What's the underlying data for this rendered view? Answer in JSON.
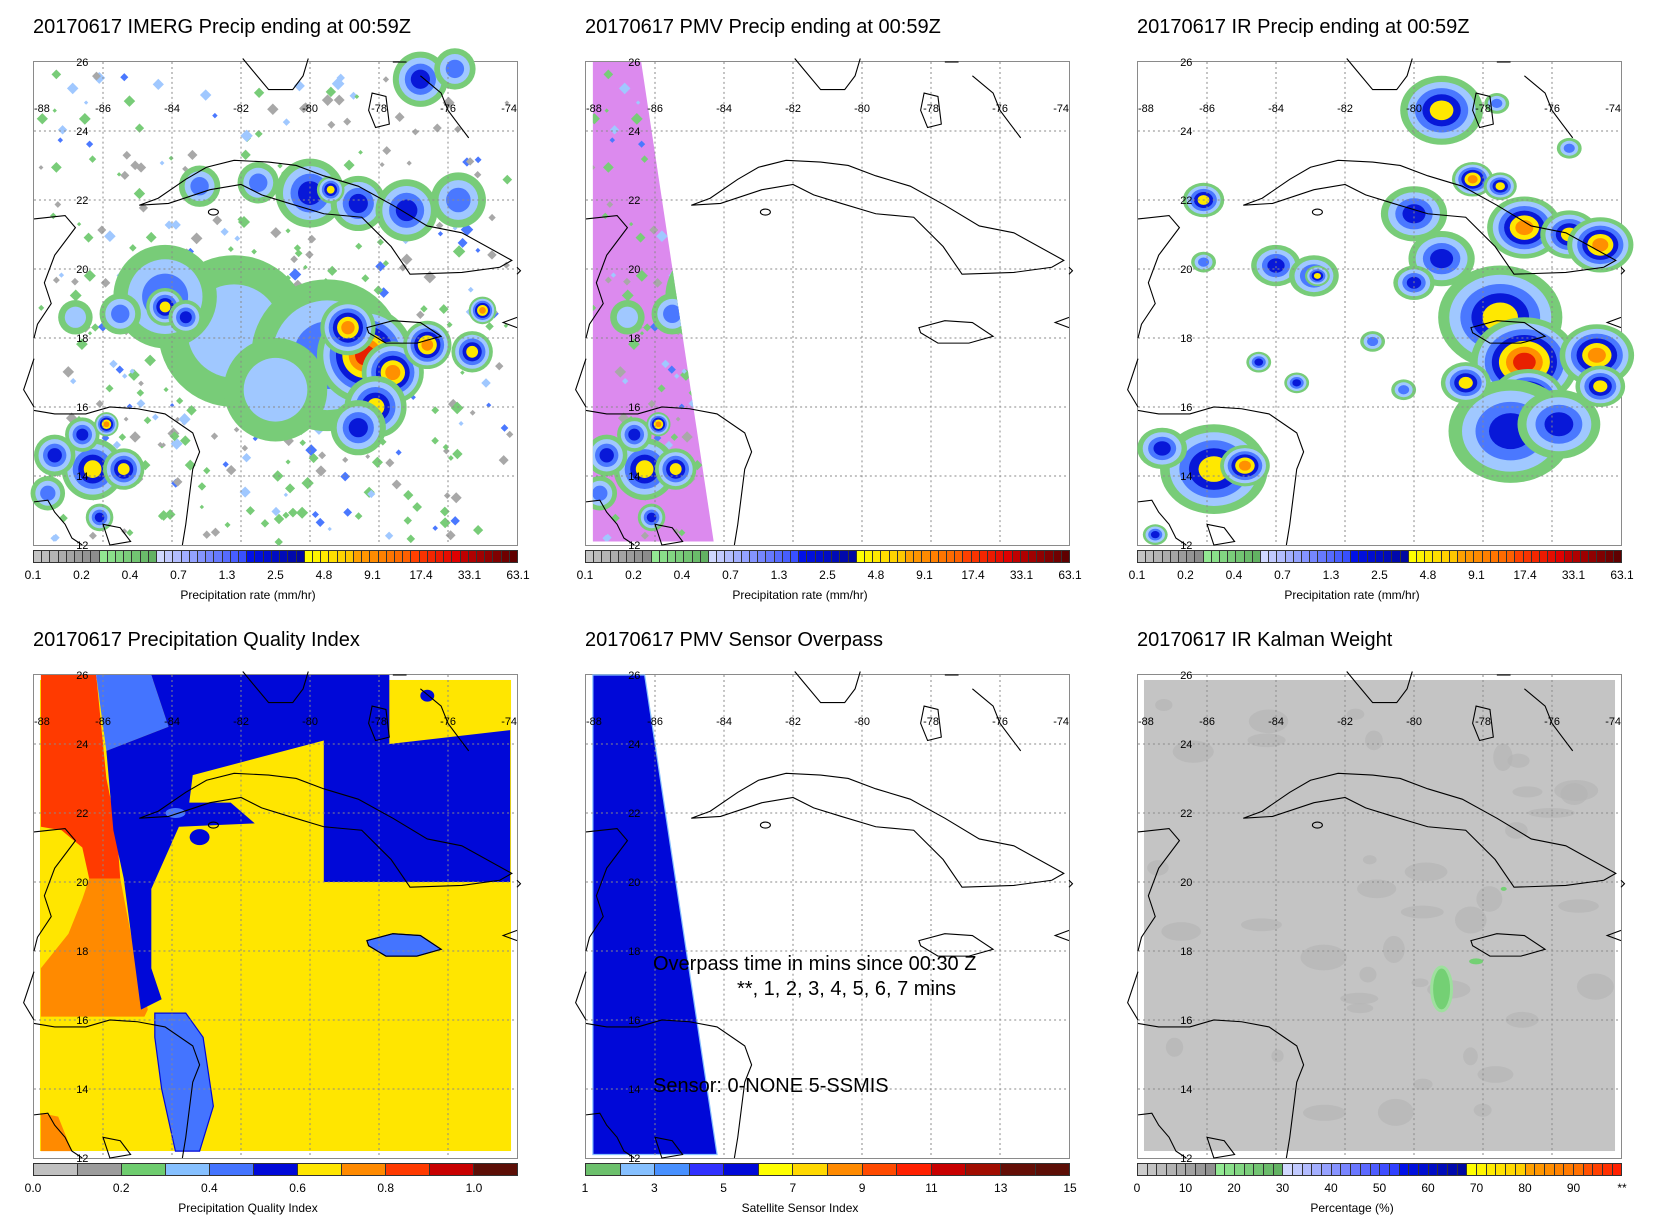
{
  "panels": [
    {
      "title": "20170617 IMERG Precip ending at 00:59Z",
      "kind": "imerg",
      "colorbar": "precip",
      "cb_label": "Precipitation rate (mm/hr)"
    },
    {
      "title": "20170617 PMV Precip ending at 00:59Z",
      "kind": "pmv",
      "colorbar": "precip",
      "cb_label": "Precipitation rate (mm/hr)"
    },
    {
      "title": "20170617 IR Precip ending at 00:59Z",
      "kind": "ir",
      "colorbar": "precip",
      "cb_label": "Precipitation rate (mm/hr)"
    },
    {
      "title": "20170617 Precipitation Quality Index",
      "kind": "pqi",
      "colorbar": "pqi",
      "cb_label": "Precipitation Quality Index"
    },
    {
      "title": "20170617 PMV Sensor Overpass",
      "kind": "overpass",
      "colorbar": "sensor",
      "cb_label": "Satellite Sensor Index"
    },
    {
      "title": "20170617 IR Kalman Weight",
      "kind": "kalman",
      "colorbar": "percent",
      "cb_label": "Percentage (%)"
    }
  ],
  "map": {
    "lon_range": [
      -88,
      -74
    ],
    "lat_range": [
      12,
      26
    ],
    "lon_labels": [
      "-88",
      "-86",
      "-84",
      "-82",
      "-80",
      "-78",
      "-76",
      "-74"
    ],
    "lat_labels": [
      "26",
      "24",
      "22",
      "20",
      "18",
      "16",
      "14",
      "12"
    ]
  },
  "overpass_text": {
    "line1": "Overpass time in mins since 00:30 Z",
    "line2": "**, 1, 2, 3, 4, 5, 6, 7 mins",
    "line3": "Sensor:  0-NONE  5-SSMIS"
  },
  "colorbars": {
    "precip": {
      "groups": [
        {
          "from": "#c4c4c4",
          "to": "#8c8c8c",
          "n": 8
        },
        {
          "from": "#92e892",
          "to": "#62b262",
          "n": 7
        },
        {
          "from": "#d0d8ff",
          "to": "#3850ff",
          "n": 11
        },
        {
          "from": "#0010e8",
          "to": "#0008a0",
          "n": 7
        },
        {
          "from": "#ffff00",
          "to": "#ffc800",
          "n": 6
        },
        {
          "from": "#ffa000",
          "to": "#ff6000",
          "n": 7
        },
        {
          "from": "#ff4000",
          "to": "#e00000",
          "n": 6
        },
        {
          "from": "#c00000",
          "to": "#600000",
          "n": 7
        }
      ],
      "ticks": [
        "0.1",
        "0.2",
        "0.4",
        "0.7",
        "1.3",
        "2.5",
        "4.8",
        "9.1",
        "17.4",
        "33.1",
        "63.1"
      ]
    },
    "pqi": {
      "colors": [
        "#c0c0c0",
        "#9c9c9c",
        "#6ecc6e",
        "#86c0ff",
        "#4474ff",
        "#0008d8",
        "#ffe600",
        "#ff8a00",
        "#ff3a00",
        "#c80000",
        "#5c0e06"
      ],
      "ticks": [
        "0.0",
        "0.2",
        "0.4",
        "0.6",
        "0.8",
        "1.0"
      ]
    },
    "sensor": {
      "colors": [
        "#6cc06c",
        "#86c0ff",
        "#4890ff",
        "#3030ff",
        "#0008d8",
        "#ffff00",
        "#ffd800",
        "#ff8a00",
        "#ff4a00",
        "#ff2000",
        "#c80000",
        "#a00c00",
        "#640e06",
        "#5c0e06"
      ],
      "ticks": [
        "1",
        "3",
        "5",
        "7",
        "9",
        "11",
        "13",
        "15"
      ]
    },
    "percent": {
      "groups": [
        {
          "from": "#cccccc",
          "to": "#909090",
          "n": 8
        },
        {
          "from": "#92e892",
          "to": "#62b262",
          "n": 7
        },
        {
          "from": "#d0d8ff",
          "to": "#3040ff",
          "n": 12
        },
        {
          "from": "#0010e8",
          "to": "#0008a0",
          "n": 7
        },
        {
          "from": "#ffff00",
          "to": "#ffd000",
          "n": 6
        },
        {
          "from": "#ffa000",
          "to": "#ff7000",
          "n": 6
        },
        {
          "from": "#ff5000",
          "to": "#ff2000",
          "n": 4
        }
      ],
      "ticks": [
        "0",
        "10",
        "20",
        "30",
        "40",
        "50",
        "60",
        "70",
        "80",
        "90",
        "**"
      ]
    }
  },
  "colors": {
    "pmv_swath": "#dc8aee",
    "overpass_swath": "#0008d8",
    "kalman_background": "#c4c4c4",
    "precip_levels": [
      "#a8a8a8",
      "#78cc78",
      "#a0c8ff",
      "#4a78ff",
      "#0818d8",
      "#ffe800",
      "#ff9000",
      "#e82000"
    ]
  }
}
